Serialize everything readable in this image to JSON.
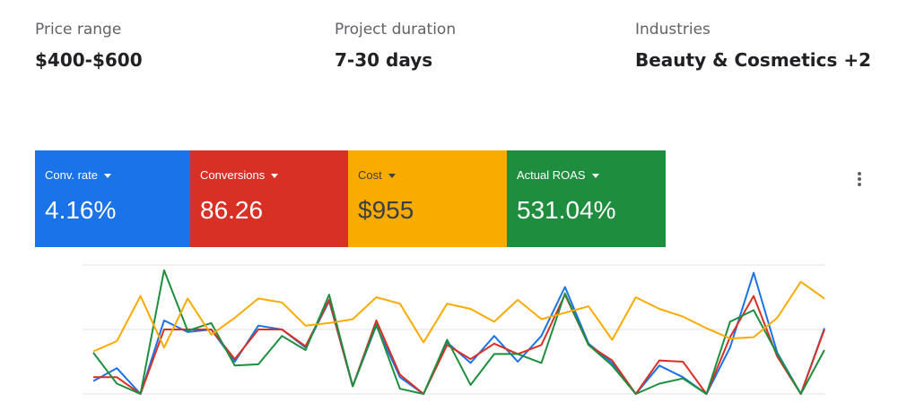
{
  "info": [
    {
      "label": "Price range",
      "value": "$400-$600"
    },
    {
      "label": "Project duration",
      "value": "7-30 days"
    },
    {
      "label": "Industries",
      "value": "Beauty & Cosmetics +2"
    }
  ],
  "metrics": [
    {
      "label": "Conv. rate",
      "value": "4.16%",
      "color": "#1a73e8",
      "text_color": "#ffffff"
    },
    {
      "label": "Conversions",
      "value": "86.26",
      "color": "#d93025",
      "text_color": "#ffffff"
    },
    {
      "label": "Cost",
      "value": "$955",
      "color": "#f9ab00",
      "text_color": "#3c4043"
    },
    {
      "label": "Actual ROAS",
      "value": "531.04%",
      "color": "#1e8e3e",
      "text_color": "#ffffff"
    }
  ],
  "more_menu": {
    "icon": "more-vert-icon"
  },
  "chart_data": {
    "type": "line",
    "xlabel": "",
    "ylabel": "",
    "ylim": [
      0,
      100
    ],
    "grid": true,
    "legend": "none",
    "x": [
      0,
      1,
      2,
      3,
      4,
      5,
      6,
      7,
      8,
      9,
      10,
      11,
      12,
      13,
      14,
      15,
      16,
      17,
      18,
      19,
      20,
      21,
      22,
      23,
      24,
      25,
      26,
      27,
      28,
      29,
      30,
      31
    ],
    "series": [
      {
        "color": "#1a73e8",
        "values": [
          10,
          20,
          0,
          57,
          48,
          50,
          25,
          53,
          50,
          36,
          72,
          6,
          53,
          13,
          0,
          40,
          24,
          45,
          25,
          45,
          83,
          39,
          24,
          0,
          22,
          13,
          0,
          36,
          94,
          32,
          0,
          51
        ]
      },
      {
        "color": "#d93025",
        "values": [
          13,
          13,
          0,
          50,
          50,
          50,
          27,
          50,
          50,
          37,
          73,
          6,
          57,
          15,
          0,
          38,
          27,
          39,
          31,
          38,
          77,
          38,
          26,
          0,
          26,
          25,
          0,
          44,
          76,
          29,
          0,
          50
        ]
      },
      {
        "color": "#1e8e3e",
        "values": [
          32,
          8,
          0,
          96,
          49,
          55,
          22,
          23,
          45,
          34,
          77,
          6,
          54,
          4,
          0,
          42,
          7,
          31,
          31,
          24,
          78,
          38,
          22,
          0,
          8,
          12,
          0,
          56,
          65,
          31,
          0,
          34
        ]
      },
      {
        "color": "#f9ab00",
        "values": [
          33,
          41,
          76,
          36,
          74,
          46,
          59,
          74,
          71,
          53,
          55,
          58,
          75,
          70,
          40,
          70,
          66,
          56,
          73,
          58,
          63,
          68,
          42,
          75,
          66,
          60,
          51,
          43,
          44,
          59,
          87,
          74
        ]
      }
    ]
  }
}
